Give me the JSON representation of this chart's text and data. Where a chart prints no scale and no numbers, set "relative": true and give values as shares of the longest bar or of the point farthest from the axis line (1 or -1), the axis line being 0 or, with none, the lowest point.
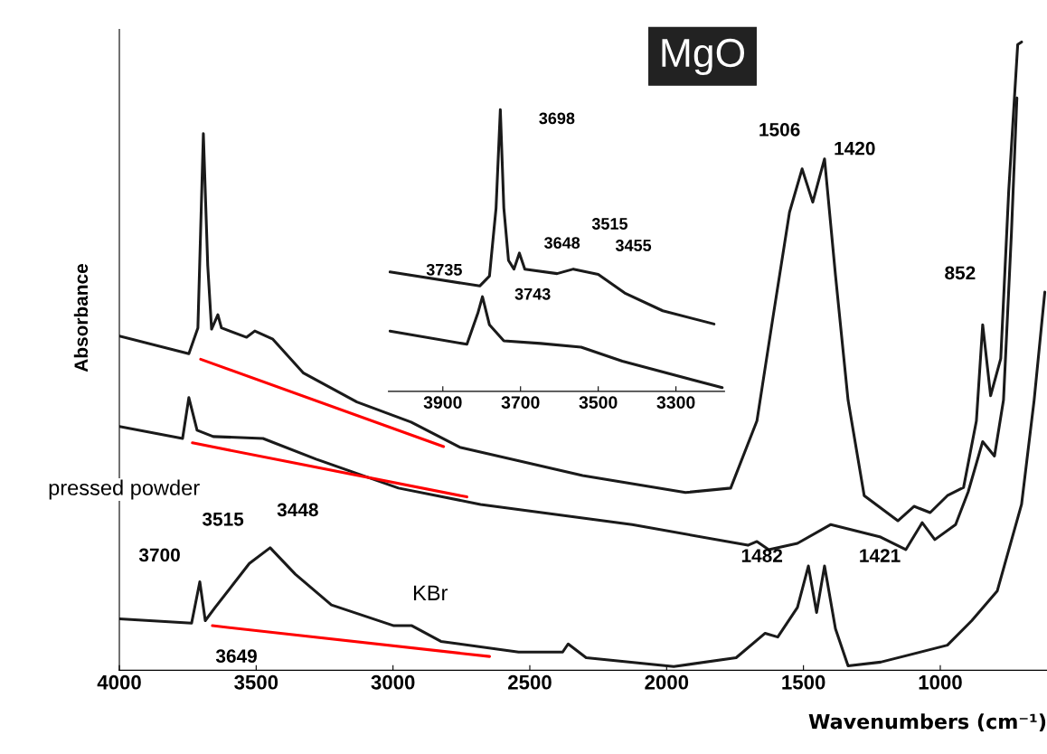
{
  "chart_data": [
    {
      "type": "line",
      "title": "MgO",
      "ylabel": "Absorbance",
      "xlabel": "Wavenumbers (cm⁻¹)",
      "relative": true,
      "xlim": [
        4000,
        610
      ],
      "xticks": [
        4000,
        3500,
        3000,
        2500,
        2000,
        1500,
        1000
      ],
      "tick_labels": "x",
      "grid": false,
      "series": [
        {
          "color": "#1a1a1a",
          "x": [
            4000,
            3746,
            3713,
            3693,
            3677,
            3663,
            3640,
            3627,
            3535,
            3505,
            3439,
            3327,
            3132,
            2934,
            2756,
            2307,
            1931,
            1766,
            1670,
            1611,
            1551,
            1505,
            1466,
            1423,
            1383,
            1337,
            1278,
            1155,
            1096,
            1037,
            974,
            915,
            868,
            845,
            816,
            779,
            750,
            717,
            703
          ],
          "values": [
            0.532,
            0.504,
            0.545,
            0.854,
            0.644,
            0.543,
            0.566,
            0.545,
            0.53,
            0.54,
            0.527,
            0.473,
            0.427,
            0.395,
            0.355,
            0.31,
            0.283,
            0.29,
            0.397,
            0.563,
            0.729,
            0.798,
            0.745,
            0.814,
            0.629,
            0.43,
            0.278,
            0.238,
            0.261,
            0.251,
            0.278,
            0.291,
            0.397,
            0.55,
            0.437,
            0.496,
            0.762,
            0.996,
            1.0
          ]
        },
        {
          "name": "pressed powder",
          "color": "#1a1a1a",
          "x": [
            4000,
            3769,
            3746,
            3716,
            3657,
            3475,
            3281,
            2980,
            2680,
            2126,
            1703,
            1670,
            1627,
            1522,
            1400,
            1218,
            1126,
            1066,
            1020,
            944,
            898,
            845,
            802,
            769,
            740,
            720
          ],
          "values": [
            0.388,
            0.369,
            0.434,
            0.382,
            0.372,
            0.369,
            0.336,
            0.29,
            0.264,
            0.232,
            0.199,
            0.205,
            0.192,
            0.202,
            0.232,
            0.212,
            0.192,
            0.235,
            0.208,
            0.232,
            0.284,
            0.364,
            0.341,
            0.43,
            0.696,
            0.911
          ]
        },
        {
          "name": "KBr",
          "color": "#1a1a1a",
          "x": [
            4000,
            3736,
            3706,
            3686,
            3650,
            3525,
            3449,
            3357,
            3225,
            2997,
            2931,
            2825,
            2541,
            2380,
            2360,
            2294,
            1974,
            1746,
            1640,
            1594,
            1522,
            1482,
            1452,
            1423,
            1383,
            1337,
            1218,
            974,
            885,
            792,
            703,
            657,
            618
          ],
          "values": [
            0.082,
            0.075,
            0.141,
            0.079,
            0.1,
            0.17,
            0.195,
            0.153,
            0.104,
            0.071,
            0.071,
            0.046,
            0.029,
            0.029,
            0.042,
            0.02,
            0.006,
            0.02,
            0.059,
            0.053,
            0.1,
            0.166,
            0.092,
            0.166,
            0.066,
            0.007,
            0.013,
            0.04,
            0.079,
            0.126,
            0.264,
            0.43,
            0.602
          ]
        },
        {
          "type": "line",
          "color": "#ff0000",
          "x": [
            3703,
            2815
          ],
          "values": [
            0.495,
            0.356
          ]
        },
        {
          "type": "line",
          "color": "#ff0000",
          "x": [
            3733,
            2730
          ],
          "values": [
            0.362,
            0.276
          ]
        },
        {
          "type": "line",
          "color": "#ff0000",
          "x": [
            3660,
            2647
          ],
          "values": [
            0.071,
            0.022
          ]
        }
      ],
      "annotations": [
        {
          "text": "1506",
          "x": 1505,
          "y": 0.798
        },
        {
          "text": "1420",
          "x": 1423,
          "y": 0.814
        },
        {
          "text": "852",
          "x": 845,
          "y": 0.55
        },
        {
          "text": "3515",
          "x": 3525,
          "y": 0.17
        },
        {
          "text": "3448",
          "x": 3449,
          "y": 0.195
        },
        {
          "text": "3700",
          "x": 3706,
          "y": 0.141
        },
        {
          "text": "3649",
          "x": 3650,
          "y": 0.1
        },
        {
          "text": "1482",
          "x": 1482,
          "y": 0.166
        },
        {
          "text": "1421",
          "x": 1423,
          "y": 0.166
        }
      ]
    },
    {
      "type": "line",
      "relative": true,
      "xlim": [
        4040,
        3175
      ],
      "xticks": [
        3900,
        3700,
        3500,
        3300
      ],
      "tick_labels": "x",
      "grid": false,
      "series": [
        {
          "color": "#1a1a1a",
          "x": [
            4036,
            3805,
            3780,
            3763,
            3752,
            3743,
            3731,
            3717,
            3703,
            3689,
            3606,
            3564,
            3500,
            3432,
            3334,
            3202
          ],
          "values": [
            0.424,
            0.374,
            0.409,
            0.651,
            1.0,
            0.651,
            0.465,
            0.434,
            0.491,
            0.434,
            0.418,
            0.434,
            0.415,
            0.349,
            0.286,
            0.239
          ]
        },
        {
          "color": "#1a1a1a",
          "x": [
            4036,
            3838,
            3810,
            3798,
            3780,
            3743,
            3648,
            3544,
            3438,
            3181
          ],
          "values": [
            0.214,
            0.167,
            0.277,
            0.336,
            0.236,
            0.179,
            0.17,
            0.157,
            0.107,
            0.013
          ]
        }
      ],
      "annotations": [
        {
          "text": "3698",
          "x": 3752,
          "y": 1.0
        },
        {
          "text": "3735",
          "x": 3780,
          "y": 0.409
        },
        {
          "text": "3648",
          "x": 3703,
          "y": 0.491
        },
        {
          "text": "3515",
          "x": 3564,
          "y": 0.434
        },
        {
          "text": "3455",
          "x": 3500,
          "y": 0.415
        },
        {
          "text": "3743",
          "x": 3798,
          "y": 0.336
        }
      ]
    }
  ]
}
